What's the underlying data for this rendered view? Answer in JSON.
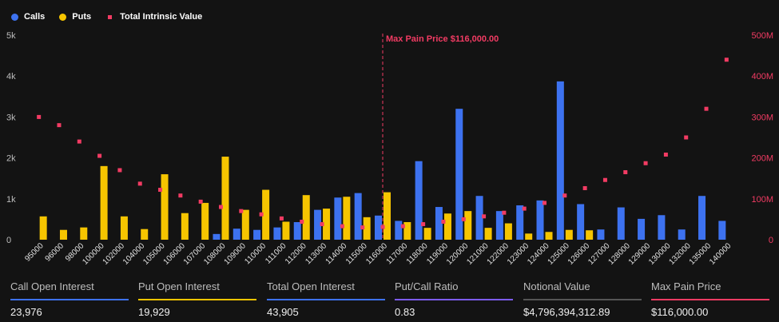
{
  "legend": {
    "calls": "Calls",
    "puts": "Puts",
    "intrinsic": "Total Intrinsic Value"
  },
  "colors": {
    "calls": "#3d72f0",
    "puts": "#f6c500",
    "intrinsic": "#f23b63",
    "ratio": "#7d5cf2",
    "notional": "#555555"
  },
  "chart_data": {
    "type": "bar",
    "categories": [
      "95000",
      "96000",
      "98000",
      "100000",
      "102000",
      "104000",
      "105000",
      "106000",
      "107000",
      "108000",
      "109000",
      "110000",
      "111000",
      "112000",
      "113000",
      "114000",
      "115000",
      "116000",
      "117000",
      "118000",
      "119000",
      "120000",
      "121000",
      "122000",
      "123000",
      "124000",
      "125000",
      "126000",
      "127000",
      "128000",
      "129000",
      "130000",
      "132000",
      "135000",
      "140000"
    ],
    "series": [
      {
        "name": "Calls",
        "axis": "left",
        "values": [
          0,
          0,
          0,
          0,
          0,
          0,
          0,
          0,
          0,
          140,
          270,
          240,
          300,
          430,
          730,
          1030,
          1140,
          590,
          460,
          1920,
          800,
          3200,
          1070,
          700,
          840,
          960,
          3870,
          870,
          250,
          790,
          510,
          600,
          250,
          1070,
          460
        ]
      },
      {
        "name": "Puts",
        "axis": "left",
        "values": [
          570,
          240,
          300,
          1800,
          570,
          260,
          1600,
          650,
          900,
          2030,
          730,
          1220,
          440,
          1090,
          760,
          1050,
          550,
          1160,
          430,
          290,
          640,
          700,
          290,
          400,
          150,
          190,
          240,
          230,
          0,
          0,
          0,
          0,
          0,
          0,
          0
        ]
      },
      {
        "name": "Total Intrinsic Value",
        "axis": "right",
        "type": "scatter",
        "values": [
          300,
          280,
          240,
          205,
          170,
          137,
          122,
          108,
          93,
          80,
          70,
          62,
          52,
          44,
          38,
          33,
          30,
          31,
          33,
          38,
          44,
          50,
          57,
          66,
          76,
          90,
          108,
          126,
          146,
          165,
          187,
          208,
          250,
          320,
          440
        ]
      }
    ],
    "y_left": {
      "ticks": [
        0,
        1000,
        2000,
        3000,
        4000,
        5000
      ],
      "tick_labels": [
        "0",
        "1k",
        "2k",
        "3k",
        "4k",
        "5k"
      ],
      "ylim": [
        0,
        5000
      ]
    },
    "y_right": {
      "ticks": [
        0,
        100,
        200,
        300,
        400,
        500
      ],
      "tick_labels": [
        "0",
        "100M",
        "200M",
        "300M",
        "400M",
        "500M"
      ],
      "ylim": [
        0,
        500
      ]
    },
    "annotation": {
      "category": "116000",
      "label": "Max Pain Price $116,000.00"
    },
    "legend_position": "top-left",
    "grid": false
  },
  "stats": [
    {
      "label": "Call Open Interest",
      "value": "23,976",
      "color": "#3d72f0"
    },
    {
      "label": "Put Open Interest",
      "value": "19,929",
      "color": "#f6c500"
    },
    {
      "label": "Total Open Interest",
      "value": "43,905",
      "color": "#3d72f0"
    },
    {
      "label": "Put/Call Ratio",
      "value": "0.83",
      "color": "#7d5cf2"
    },
    {
      "label": "Notional Value",
      "value": "$4,796,394,312.89",
      "color": "#555555"
    },
    {
      "label": "Max Pain Price",
      "value": "$116,000.00",
      "color": "#f23b63"
    }
  ]
}
